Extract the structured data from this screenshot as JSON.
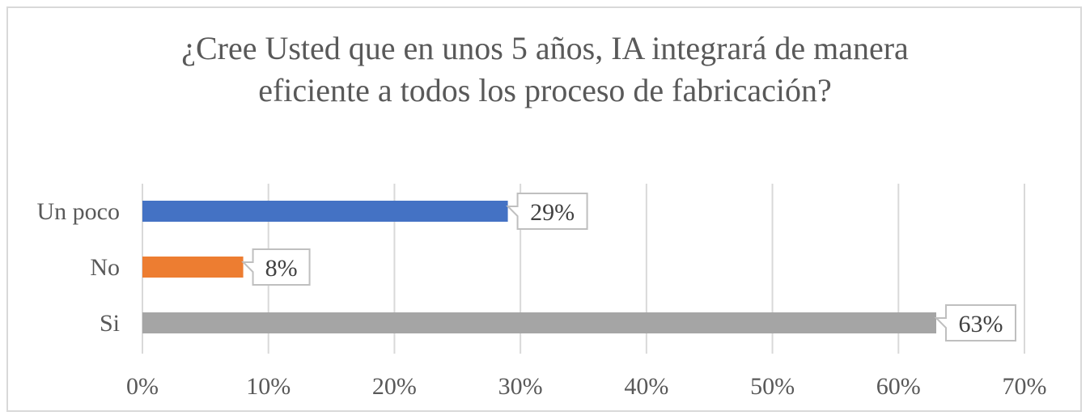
{
  "chart_data": {
    "type": "bar",
    "orientation": "horizontal",
    "title_lines": [
      "¿Cree Usted que en unos 5 años, IA integrará de manera",
      "eficiente a todos los proceso de fabricación?"
    ],
    "categories": [
      "Un poco",
      "No",
      "Si"
    ],
    "values": [
      29,
      8,
      63
    ],
    "data_labels": [
      "29%",
      "8%",
      "63%"
    ],
    "colors": [
      "#4472c4",
      "#ed7d31",
      "#a5a5a5"
    ],
    "xlim": [
      0,
      70
    ],
    "x_ticks": [
      0,
      10,
      20,
      30,
      40,
      50,
      60,
      70
    ],
    "x_tick_labels": [
      "0%",
      "10%",
      "20%",
      "30%",
      "40%",
      "50%",
      "60%",
      "70%"
    ],
    "grid": true,
    "legend": "none"
  }
}
